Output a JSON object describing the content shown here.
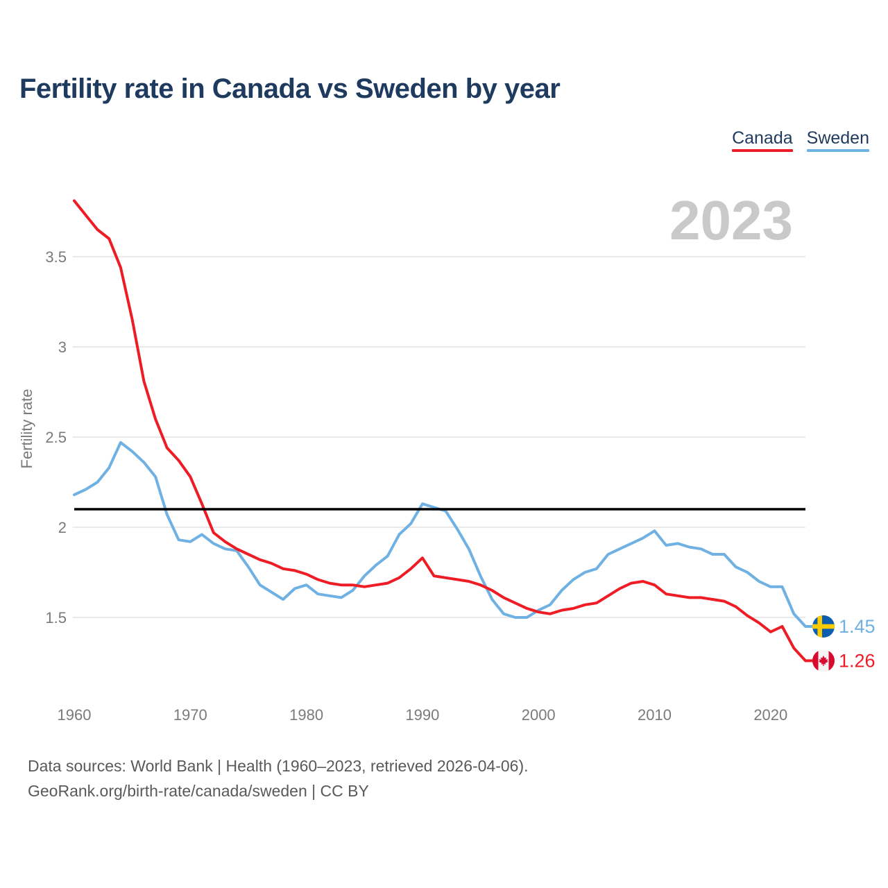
{
  "header": {
    "title": "Fertility rate in Canada vs Sweden by year",
    "legend": [
      {
        "label": "Canada",
        "color": "#ee1c25"
      },
      {
        "label": "Sweden",
        "color": "#6fb1e3"
      }
    ]
  },
  "chart_data": {
    "type": "line",
    "title": "Fertility rate in Canada vs Sweden by year",
    "xlabel": "",
    "ylabel": "Fertility rate",
    "watermark": "2023",
    "grid": "horizontal",
    "legend_position": "top-right",
    "xlim": [
      1960,
      2023
    ],
    "ylim": [
      1.15,
      3.85
    ],
    "xticks": [
      {
        "value": 1960,
        "label": "1960"
      },
      {
        "value": 1970,
        "label": "1970"
      },
      {
        "value": 1980,
        "label": "1980"
      },
      {
        "value": 1990,
        "label": "1990"
      },
      {
        "value": 2000,
        "label": "2000"
      },
      {
        "value": 2010,
        "label": "2010"
      },
      {
        "value": 2020,
        "label": "2020"
      }
    ],
    "yticks": [
      {
        "value": 1.5,
        "label": "1.5"
      },
      {
        "value": 2,
        "label": "2"
      },
      {
        "value": 2.5,
        "label": "2.5"
      },
      {
        "value": 3,
        "label": "3"
      },
      {
        "value": 3.5,
        "label": "3.5"
      }
    ],
    "reference_line": {
      "value": 2.1,
      "color": "#000000"
    },
    "x": [
      1960,
      1961,
      1962,
      1963,
      1964,
      1965,
      1966,
      1967,
      1968,
      1969,
      1970,
      1971,
      1972,
      1973,
      1974,
      1975,
      1976,
      1977,
      1978,
      1979,
      1980,
      1981,
      1982,
      1983,
      1984,
      1985,
      1986,
      1987,
      1988,
      1989,
      1990,
      1991,
      1992,
      1993,
      1994,
      1995,
      1996,
      1997,
      1998,
      1999,
      2000,
      2001,
      2002,
      2003,
      2004,
      2005,
      2006,
      2007,
      2008,
      2009,
      2010,
      2011,
      2012,
      2013,
      2014,
      2015,
      2016,
      2017,
      2018,
      2019,
      2020,
      2021,
      2022,
      2023
    ],
    "series": [
      {
        "id": "canada",
        "name": "Canada",
        "color": "#ee1c25",
        "icon": "canada-flag-icon",
        "end_label": "1.26",
        "values": [
          3.81,
          3.73,
          3.65,
          3.6,
          3.44,
          3.15,
          2.81,
          2.6,
          2.44,
          2.37,
          2.28,
          2.13,
          1.97,
          1.92,
          1.88,
          1.85,
          1.82,
          1.8,
          1.77,
          1.76,
          1.74,
          1.71,
          1.69,
          1.68,
          1.68,
          1.67,
          1.68,
          1.69,
          1.72,
          1.77,
          1.83,
          1.73,
          1.72,
          1.71,
          1.7,
          1.68,
          1.65,
          1.61,
          1.58,
          1.55,
          1.53,
          1.52,
          1.54,
          1.55,
          1.57,
          1.58,
          1.62,
          1.66,
          1.69,
          1.7,
          1.68,
          1.63,
          1.62,
          1.61,
          1.61,
          1.6,
          1.59,
          1.56,
          1.51,
          1.47,
          1.42,
          1.45,
          1.33,
          1.26
        ]
      },
      {
        "id": "sweden",
        "name": "Sweden",
        "color": "#6fb1e3",
        "icon": "sweden-flag-icon",
        "end_label": "1.45",
        "values": [
          2.18,
          2.21,
          2.25,
          2.33,
          2.47,
          2.42,
          2.36,
          2.28,
          2.07,
          1.93,
          1.92,
          1.96,
          1.91,
          1.88,
          1.87,
          1.78,
          1.68,
          1.64,
          1.6,
          1.66,
          1.68,
          1.63,
          1.62,
          1.61,
          1.65,
          1.73,
          1.79,
          1.84,
          1.96,
          2.02,
          2.13,
          2.11,
          2.09,
          1.99,
          1.88,
          1.73,
          1.6,
          1.52,
          1.5,
          1.5,
          1.54,
          1.57,
          1.65,
          1.71,
          1.75,
          1.77,
          1.85,
          1.88,
          1.91,
          1.94,
          1.98,
          1.9,
          1.91,
          1.89,
          1.88,
          1.85,
          1.85,
          1.78,
          1.75,
          1.7,
          1.67,
          1.67,
          1.52,
          1.45
        ]
      }
    ]
  },
  "footer": {
    "line1": "Data sources: World Bank | Health (1960–2023, retrieved 2026-04-06).",
    "line2": "GeoRank.org/birth-rate/canada/sweden | CC BY"
  }
}
